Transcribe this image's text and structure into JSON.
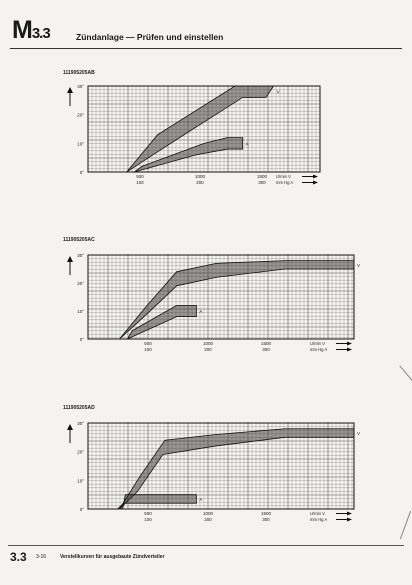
{
  "header": {
    "code": "M",
    "code_sub": "3.3",
    "title": "Zündanlage — Prüfen und einstellen"
  },
  "footer": {
    "section": "3.3",
    "page": "3-16",
    "description": "Verstellkurven für ausgebaute Zündverteiler"
  },
  "chart_data": [
    {
      "type": "area",
      "title": "111905205AB",
      "yticks": [
        "30°",
        "20°",
        "10°",
        "0°"
      ],
      "ylim": [
        0,
        30
      ],
      "xlim": [
        0,
        1500
      ],
      "x_ticks_primary": [
        "500",
        "1000",
        "1500"
      ],
      "x_ticks_secondary": [
        "100",
        "200",
        "300"
      ],
      "x_axis_labels": [
        "U/min V",
        "mm Hg A"
      ],
      "series": [
        {
          "name": "V",
          "lower": [
            [
              250,
              0
            ],
            [
              420,
              6
            ],
            [
              650,
              14
            ],
            [
              1000,
              26
            ],
            [
              1150,
              26
            ]
          ],
          "upper": [
            [
              250,
              0
            ],
            [
              450,
              13
            ],
            [
              950,
              30
            ],
            [
              1200,
              30
            ]
          ]
        },
        {
          "name": "A",
          "lower": [
            [
              300,
              0
            ],
            [
              700,
              6
            ],
            [
              900,
              8
            ],
            [
              1000,
              8
            ]
          ],
          "upper": [
            [
              350,
              2
            ],
            [
              750,
              10
            ],
            [
              900,
              12
            ],
            [
              1000,
              12
            ]
          ]
        }
      ]
    },
    {
      "type": "area",
      "title": "111905205AC",
      "yticks": [
        "30°",
        "20°",
        "10°",
        "0°"
      ],
      "ylim": [
        0,
        30
      ],
      "xlim": [
        0,
        2700
      ],
      "x_ticks_primary": [
        "500",
        "1000",
        "1500"
      ],
      "x_ticks_secondary": [
        "100",
        "200",
        "300"
      ],
      "x_axis_labels": [
        "U/min V",
        "mm Hg A"
      ],
      "series": [
        {
          "name": "V",
          "lower": [
            [
              320,
              0
            ],
            [
              600,
              9
            ],
            [
              900,
              19
            ],
            [
              1300,
              22
            ],
            [
              2000,
              25
            ],
            [
              2700,
              25
            ]
          ],
          "upper": [
            [
              320,
              0
            ],
            [
              600,
              12
            ],
            [
              900,
              24
            ],
            [
              1300,
              27
            ],
            [
              2000,
              28
            ],
            [
              2700,
              28
            ]
          ]
        },
        {
          "name": "A",
          "lower": [
            [
              400,
              0
            ],
            [
              900,
              8
            ],
            [
              1100,
              8
            ]
          ],
          "upper": [
            [
              450,
              3
            ],
            [
              900,
              12
            ],
            [
              1100,
              12
            ]
          ]
        }
      ]
    },
    {
      "type": "area",
      "title": "111905205AD",
      "yticks": [
        "30°",
        "20°",
        "10°",
        "0°"
      ],
      "ylim": [
        0,
        30
      ],
      "xlim": [
        0,
        2700
      ],
      "x_ticks_primary": [
        "500",
        "1000",
        "1500"
      ],
      "x_ticks_secondary": [
        "100",
        "200",
        "300"
      ],
      "x_axis_labels": [
        "U/min V",
        "mm Hg A"
      ],
      "series": [
        {
          "name": "V",
          "lower": [
            [
              320,
              0
            ],
            [
              500,
              6
            ],
            [
              760,
              19
            ],
            [
              1300,
              22
            ],
            [
              2000,
              25
            ],
            [
              2700,
              25
            ]
          ],
          "upper": [
            [
              320,
              0
            ],
            [
              520,
              11
            ],
            [
              780,
              24
            ],
            [
              1300,
              26
            ],
            [
              2000,
              28
            ],
            [
              2700,
              28
            ]
          ]
        },
        {
          "name": "A",
          "lower": [
            [
              300,
              0
            ],
            [
              360,
              2
            ],
            [
              1100,
              2
            ]
          ],
          "upper": [
            [
              350,
              0
            ],
            [
              380,
              5
            ],
            [
              1100,
              5
            ]
          ]
        }
      ]
    }
  ]
}
